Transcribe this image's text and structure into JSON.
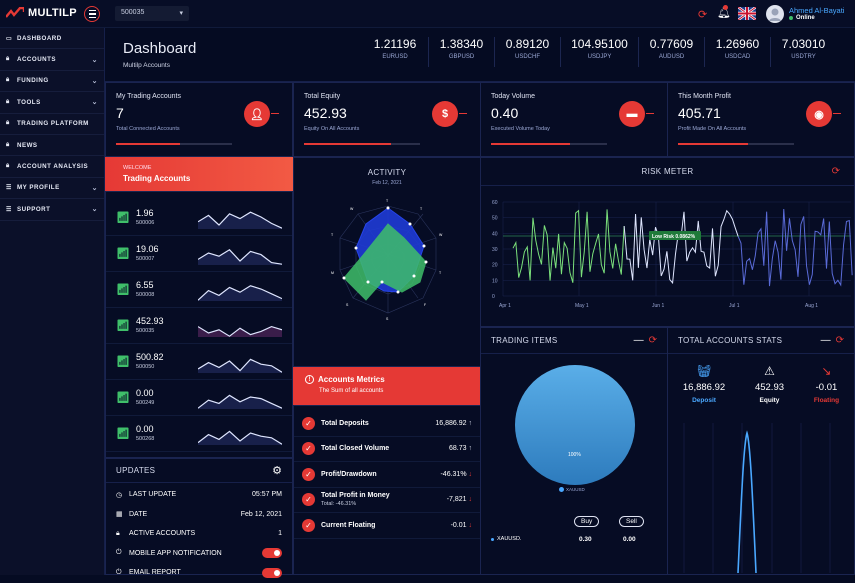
{
  "app": {
    "name": "MULTILP",
    "account_select": "500035"
  },
  "user": {
    "name": "Ahmed Al-Bayati",
    "status": "Online"
  },
  "sidebar": {
    "items": [
      {
        "label": "DASHBOARD",
        "icon": "monitor-icon",
        "chevron": false
      },
      {
        "label": "ACCOUNTS",
        "icon": "lock-icon",
        "chevron": true
      },
      {
        "label": "FUNDING",
        "icon": "lock-icon",
        "chevron": true
      },
      {
        "label": "TOOLS",
        "icon": "lock-icon",
        "chevron": true
      },
      {
        "label": "TRADING PLATFORM",
        "icon": "lock-icon",
        "chevron": false
      },
      {
        "label": "NEWS",
        "icon": "lock-icon",
        "chevron": false
      },
      {
        "label": "ACCOUNT ANALYSIS",
        "icon": "lock-icon",
        "chevron": false
      },
      {
        "label": "MY PROFILE",
        "icon": "list-icon",
        "chevron": true
      },
      {
        "label": "SUPPORT",
        "icon": "list-icon",
        "chevron": true
      }
    ]
  },
  "header": {
    "title": "Dashboard",
    "subtitle": "Multilp Accounts"
  },
  "tickers": [
    {
      "value": "1.21196",
      "symbol": "EURUSD"
    },
    {
      "value": "1.38340",
      "symbol": "GBPUSD"
    },
    {
      "value": "0.89120",
      "symbol": "USDCHF"
    },
    {
      "value": "104.95100",
      "symbol": "USDJPY"
    },
    {
      "value": "0.77609",
      "symbol": "AUDUSD"
    },
    {
      "value": "1.26960",
      "symbol": "USDCAD"
    },
    {
      "value": "7.03010",
      "symbol": "USDTRY"
    }
  ],
  "cards": [
    {
      "title": "My Trading Accounts",
      "value": "7",
      "sub": "Total Connected Accounts",
      "progress": 0.55,
      "icon": "user-icon"
    },
    {
      "title": "Total Equity",
      "value": "452.93",
      "sub": "Equity On All Accounts",
      "progress": 0.75,
      "icon": "dollar-icon"
    },
    {
      "title": "Today Volume",
      "value": "0.40",
      "sub": "Executed Volume Today",
      "progress": 0.68,
      "icon": "wallet-icon"
    },
    {
      "title": "This Month Profit",
      "value": "405.71",
      "sub": "Profit Made On All Accounts",
      "progress": 0.6,
      "icon": "eye-icon"
    }
  ],
  "welcome": {
    "line1": "WELCOME",
    "line2": "Trading Accounts"
  },
  "accounts": [
    {
      "value": "1.96",
      "id": "500006"
    },
    {
      "value": "19.06",
      "id": "500007"
    },
    {
      "value": "6.55",
      "id": "500008"
    },
    {
      "value": "452.93",
      "id": "500035"
    },
    {
      "value": "500.82",
      "id": "500050"
    },
    {
      "value": "0.00",
      "id": "500249"
    },
    {
      "value": "0.00",
      "id": "500268"
    }
  ],
  "activity": {
    "title": "ACTIVITY",
    "date": "Feb 12, 2021"
  },
  "risk": {
    "title": "RISK METER",
    "badge": "Low Risk  0.0862%",
    "yticks": [
      "60",
      "50",
      "40",
      "30",
      "20",
      "10",
      "0"
    ],
    "xticks": [
      "Apr 1",
      "May 1",
      "Jun 1",
      "Jul 1",
      "Aug 1"
    ]
  },
  "updates": {
    "title": "UPDATES",
    "rows": [
      {
        "label": "LAST UPDATE",
        "value": "05:57 PM",
        "icon": "clock-icon"
      },
      {
        "label": "DATE",
        "value": "Feb 12, 2021",
        "icon": "calendar-icon"
      },
      {
        "label": "ACTIVE ACCOUNTS",
        "value": "1",
        "icon": "lock-icon"
      },
      {
        "label": "MOBILE APP NOTIFICATION",
        "value": "",
        "icon": "power-icon"
      },
      {
        "label": "EMAIL REPORT",
        "value": "",
        "icon": "power-icon"
      }
    ]
  },
  "metrics": {
    "title": "Accounts Metrics",
    "sub": "The Sum of all accounts",
    "rows": [
      {
        "label": "Total Deposits",
        "sub": "",
        "value": "16,886.92",
        "dir": "up"
      },
      {
        "label": "Total Closed Volume",
        "sub": "",
        "value": "68.73",
        "dir": "up"
      },
      {
        "label": "Profit/Drawdown",
        "sub": "",
        "value": "-46.31%",
        "dir": "down"
      },
      {
        "label": "Total Profit in Money",
        "sub": "Total: -46.31%",
        "value": "-7,821",
        "dir": "down"
      },
      {
        "label": "Current Floating",
        "sub": "",
        "value": "-0.01",
        "dir": "down"
      }
    ]
  },
  "trading_items": {
    "title": "TRADING ITEMS",
    "pie_label": "100%",
    "legend": "XAUUSD",
    "buy": "Buy",
    "sell": "Sell",
    "row": {
      "symbol": "XAUUSD.",
      "buy": "0.30",
      "sell": "0.00"
    }
  },
  "stats": {
    "title": "TOTAL ACCOUNTS STATS",
    "items": [
      {
        "value": "16,886.92",
        "label": "Deposit",
        "color": "#4aa8ff"
      },
      {
        "value": "452.93",
        "label": "Equity",
        "color": "#ffffff"
      },
      {
        "value": "-0.01",
        "label": "Floating",
        "color": "#e53935"
      }
    ]
  },
  "colors": {
    "accent": "#e53935",
    "bg": "#050b22",
    "panel": "#0b1029"
  }
}
